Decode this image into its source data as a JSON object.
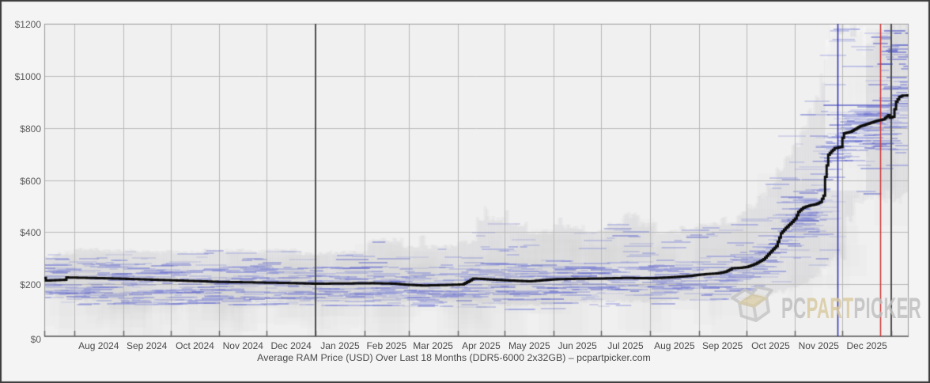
{
  "watermark": {
    "pc": "PC",
    "part": "PART",
    "picker": "PICKER",
    "gray_color": "#bdbdbd",
    "tan_color": "#d8c89e"
  },
  "theme": {
    "frame_bg": "#f4f4f4",
    "plot_bg": "#f0f0f0",
    "frame_border": "#3c3c3c",
    "plot_border": "#9a9a9a",
    "axis_line": "#787878",
    "gridline": "#b9b9b9",
    "year_line": "#4d4d4d",
    "band_fill": "#c8c8d0",
    "dash_blue": "#7d84cf",
    "dash_blue_dark": "#585ec8",
    "avg_line": "#0c0c0c"
  },
  "chart_data": {
    "type": "line",
    "title": "Average RAM Price (USD) Over Last 18 Months (DDR5-6000 2x32GB) – pcpartpicker.com",
    "x_axis": {
      "start_date": "2024-07-13",
      "end_date": "2026-01-12",
      "tick_labels": [
        "Aug 2024",
        "Sep 2024",
        "Oct 2024",
        "Nov 2024",
        "Dec 2024",
        "Jan 2025",
        "Feb 2025",
        "Mar 2025",
        "Apr 2025",
        "May 2025",
        "Jun 2025",
        "Jul 2025",
        "Aug 2025",
        "Sep 2025",
        "Oct 2025",
        "Nov 2025",
        "Dec 2025"
      ]
    },
    "y_axis": {
      "min": 0,
      "max": 1200,
      "tick_step": 200,
      "tick_labels": [
        "$0",
        "$200",
        "$400",
        "$600",
        "$800",
        "$1000",
        "$1200"
      ],
      "unit": "USD"
    },
    "grid": true,
    "series": [
      {
        "name": "Average RAM Price (USD)",
        "style": "step",
        "color": "#0c0c0c",
        "points": [
          [
            "2024-07-13",
            224
          ],
          [
            "2024-07-14",
            214
          ],
          [
            "2024-07-18",
            215
          ],
          [
            "2024-07-26",
            217
          ],
          [
            "2024-07-27",
            226
          ],
          [
            "2024-08-12",
            224
          ],
          [
            "2024-09-01",
            221
          ],
          [
            "2024-09-22",
            217
          ],
          [
            "2024-10-12",
            213
          ],
          [
            "2024-11-01",
            209
          ],
          [
            "2024-11-22",
            207
          ],
          [
            "2024-12-12",
            205
          ],
          [
            "2025-01-01",
            202
          ],
          [
            "2025-01-22",
            203
          ],
          [
            "2025-02-06",
            204
          ],
          [
            "2025-02-20",
            202
          ],
          [
            "2025-02-28",
            198
          ],
          [
            "2025-03-10",
            195
          ],
          [
            "2025-03-24",
            197
          ],
          [
            "2025-04-04",
            199
          ],
          [
            "2025-04-07",
            208
          ],
          [
            "2025-04-11",
            222
          ],
          [
            "2025-04-17",
            220
          ],
          [
            "2025-04-25",
            217
          ],
          [
            "2025-05-09",
            213
          ],
          [
            "2025-05-17",
            211
          ],
          [
            "2025-05-26",
            216
          ],
          [
            "2025-06-02",
            219
          ],
          [
            "2025-06-16",
            221
          ],
          [
            "2025-07-02",
            222
          ],
          [
            "2025-07-16",
            224
          ],
          [
            "2025-08-02",
            223
          ],
          [
            "2025-08-16",
            227
          ],
          [
            "2025-08-26",
            232
          ],
          [
            "2025-09-04",
            238
          ],
          [
            "2025-09-13",
            242
          ],
          [
            "2025-09-18",
            248
          ],
          [
            "2025-09-22",
            261
          ],
          [
            "2025-09-27",
            263
          ],
          [
            "2025-10-02",
            267
          ],
          [
            "2025-10-07",
            279
          ],
          [
            "2025-10-12",
            296
          ],
          [
            "2025-10-16",
            322
          ],
          [
            "2025-10-20",
            346
          ],
          [
            "2025-10-23",
            396
          ],
          [
            "2025-10-26",
            416
          ],
          [
            "2025-10-29",
            433
          ],
          [
            "2025-11-01",
            452
          ],
          [
            "2025-11-03",
            478
          ],
          [
            "2025-11-06",
            494
          ],
          [
            "2025-11-10",
            502
          ],
          [
            "2025-11-14",
            507
          ],
          [
            "2025-11-17",
            516
          ],
          [
            "2025-11-19",
            540
          ],
          [
            "2025-11-20",
            612
          ],
          [
            "2025-11-21",
            656
          ],
          [
            "2025-11-22",
            697
          ],
          [
            "2025-11-24",
            711
          ],
          [
            "2025-11-26",
            722
          ],
          [
            "2025-11-30",
            727
          ],
          [
            "2025-12-01",
            762
          ],
          [
            "2025-12-02",
            779
          ],
          [
            "2025-12-06",
            785
          ],
          [
            "2025-12-12",
            806
          ],
          [
            "2025-12-18",
            818
          ],
          [
            "2025-12-23",
            828
          ],
          [
            "2025-12-27",
            833
          ],
          [
            "2025-12-30",
            849
          ],
          [
            "2025-12-31",
            839
          ],
          [
            "2026-01-02",
            843
          ],
          [
            "2026-01-04",
            901
          ],
          [
            "2026-01-06",
            919
          ],
          [
            "2026-01-08",
            924
          ],
          [
            "2026-01-12",
            925
          ]
        ]
      }
    ],
    "range_band": {
      "description": "min-max spread of individual listing prices (gray region)",
      "segments": [
        [
          "2024-07-13",
          168,
          305
        ],
        [
          "2024-07-20",
          150,
          318
        ],
        [
          "2024-08-01",
          140,
          332
        ],
        [
          "2024-08-20",
          142,
          328
        ],
        [
          "2024-09-10",
          140,
          324
        ],
        [
          "2024-10-01",
          142,
          322
        ],
        [
          "2024-10-20",
          145,
          330
        ],
        [
          "2024-11-10",
          140,
          328
        ],
        [
          "2024-12-01",
          142,
          330
        ],
        [
          "2024-12-20",
          140,
          318
        ],
        [
          "2025-01-10",
          138,
          322
        ],
        [
          "2025-02-03",
          136,
          370
        ],
        [
          "2025-02-25",
          135,
          340
        ],
        [
          "2025-03-08",
          134,
          392
        ],
        [
          "2025-03-11",
          133,
          345
        ],
        [
          "2025-04-01",
          130,
          360
        ],
        [
          "2025-04-13",
          128,
          450
        ],
        [
          "2025-04-18",
          128,
          492
        ],
        [
          "2025-04-20",
          126,
          452
        ],
        [
          "2025-04-30",
          124,
          430
        ],
        [
          "2025-05-01",
          122,
          482
        ],
        [
          "2025-05-03",
          120,
          430
        ],
        [
          "2025-05-15",
          120,
          400
        ],
        [
          "2025-06-01",
          133,
          420
        ],
        [
          "2025-06-04",
          133,
          462
        ],
        [
          "2025-06-06",
          134,
          420
        ],
        [
          "2025-06-20",
          135,
          400
        ],
        [
          "2025-07-05",
          135,
          430
        ],
        [
          "2025-07-15",
          136,
          465
        ],
        [
          "2025-07-25",
          135,
          430
        ],
        [
          "2025-08-05",
          136,
          400
        ],
        [
          "2025-08-20",
          138,
          415
        ],
        [
          "2025-09-01",
          140,
          430
        ],
        [
          "2025-09-15",
          142,
          465
        ],
        [
          "2025-09-18",
          142,
          430
        ],
        [
          "2025-09-25",
          145,
          470
        ],
        [
          "2025-10-01",
          150,
          500
        ],
        [
          "2025-10-08",
          155,
          540
        ],
        [
          "2025-10-14",
          162,
          580
        ],
        [
          "2025-10-20",
          170,
          640
        ],
        [
          "2025-10-25",
          180,
          690
        ],
        [
          "2025-10-30",
          190,
          740
        ],
        [
          "2025-11-04",
          200,
          800
        ],
        [
          "2025-11-09",
          215,
          860
        ],
        [
          "2025-11-13",
          230,
          910
        ],
        [
          "2025-11-17",
          255,
          990
        ],
        [
          "2025-11-20",
          280,
          1090
        ],
        [
          "2025-11-23",
          300,
          1180
        ],
        [
          "2025-11-27",
          305,
          1200
        ],
        [
          "2025-12-03",
          450,
          1200
        ],
        [
          "2025-12-08",
          535,
          1180
        ],
        [
          "2025-12-14",
          535,
          1100
        ],
        [
          "2025-12-20",
          530,
          1140
        ],
        [
          "2025-12-25",
          535,
          1180
        ],
        [
          "2026-01-01",
          530,
          1200
        ]
      ],
      "light_spikes": [
        [
          "2025-11-20",
          "2025-11-23",
          1140
        ],
        [
          "2025-11-23",
          "2025-11-28",
          1200
        ],
        [
          "2025-11-28",
          "2025-12-02",
          1160
        ],
        [
          "2025-12-02",
          "2025-12-06",
          1200
        ],
        [
          "2025-12-06",
          "2025-12-10",
          1150
        ],
        [
          "2025-12-10",
          "2025-12-16",
          1190
        ]
      ]
    },
    "scatter_dashes": {
      "description": "individual listing price marks (blue dashes)",
      "long_dash": {
        "start": "2025-11-19",
        "end": "2026-01-05",
        "value": 890
      },
      "top_right_cluster": {
        "start": "2025-12-26",
        "end": "2026-01-12",
        "low": 950,
        "high": 1190
      }
    },
    "annotations": {
      "year_boundary_lines": [
        {
          "date": "2025-01-01",
          "color": "#4d4d4d"
        },
        {
          "date": "2026-01-01",
          "color": "#4d4d4d"
        }
      ],
      "event_lines": [
        {
          "date": "2025-11-28",
          "color": "#2a2ab4"
        },
        {
          "date": "2025-12-25",
          "color": "#cc3333"
        }
      ]
    }
  }
}
